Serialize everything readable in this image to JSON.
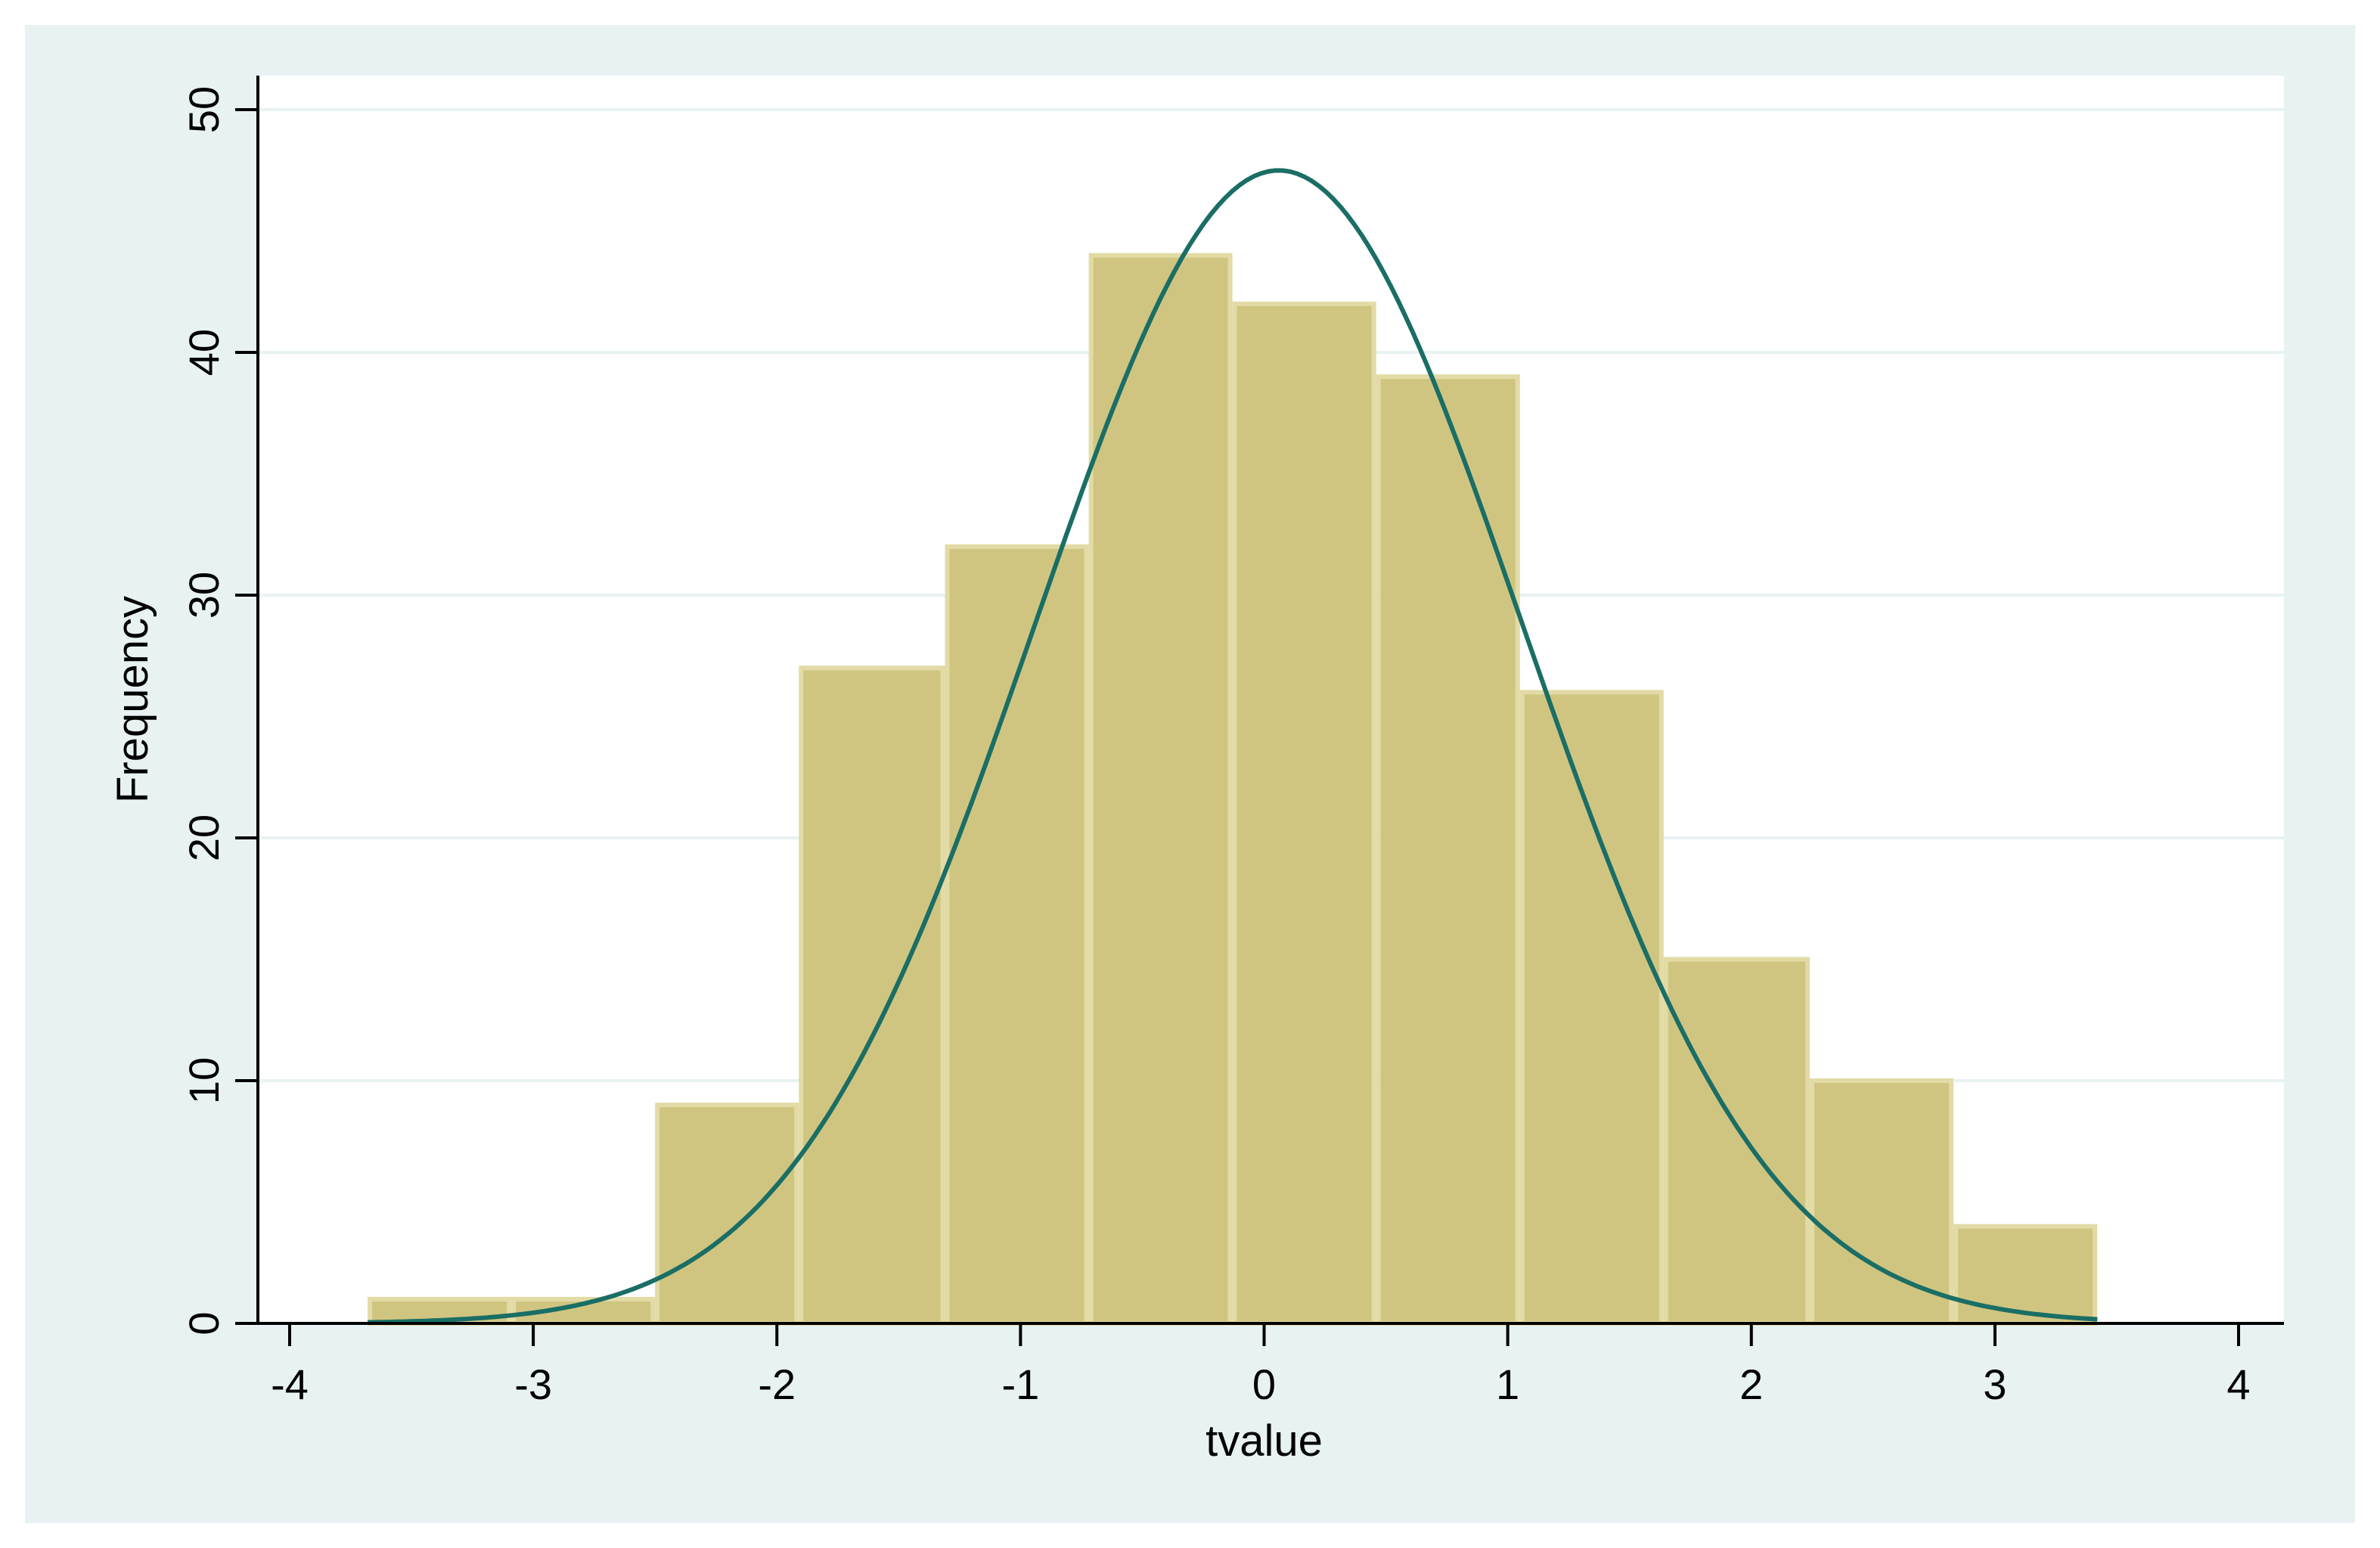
{
  "chart_data": {
    "type": "bar",
    "title": "",
    "xlabel": "tvalue",
    "ylabel": "Frequency",
    "xlim": [
      -4,
      4
    ],
    "ylim": [
      0,
      50
    ],
    "x_ticks": [
      "-4",
      "-3",
      "-2",
      "-1",
      "0",
      "1",
      "2",
      "3",
      "4"
    ],
    "y_ticks": [
      "0",
      "10",
      "20",
      "30",
      "40",
      "50"
    ],
    "grid": true,
    "legend": "none",
    "bins": [
      {
        "x0": -3.68,
        "x1": -3.09,
        "count": 1
      },
      {
        "x0": -3.09,
        "x1": -2.5,
        "count": 1
      },
      {
        "x0": -2.5,
        "x1": -1.91,
        "count": 9
      },
      {
        "x0": -1.91,
        "x1": -1.31,
        "count": 27
      },
      {
        "x0": -1.31,
        "x1": -0.72,
        "count": 32
      },
      {
        "x0": -0.72,
        "x1": -0.13,
        "count": 44
      },
      {
        "x0": -0.13,
        "x1": 0.46,
        "count": 42
      },
      {
        "x0": 0.46,
        "x1": 1.05,
        "count": 39
      },
      {
        "x0": 1.05,
        "x1": 1.64,
        "count": 26
      },
      {
        "x0": 1.64,
        "x1": 2.24,
        "count": 15
      },
      {
        "x0": 2.24,
        "x1": 2.83,
        "count": 10
      },
      {
        "x0": 2.83,
        "x1": 3.42,
        "count": 4
      }
    ],
    "normal_curve": {
      "mean": 0.06,
      "sd": 1.0,
      "peak": 47.5,
      "x_range": [
        -3.68,
        3.42
      ]
    },
    "colors": {
      "frame_background": "#e8f2f3",
      "plot_background": "#ffffff",
      "gridline": "#e8f2f3",
      "bar_fill": "#d0c580",
      "bar_edge": "#e2dba6",
      "curve": "#1a6e65",
      "axis": "#000000"
    }
  }
}
